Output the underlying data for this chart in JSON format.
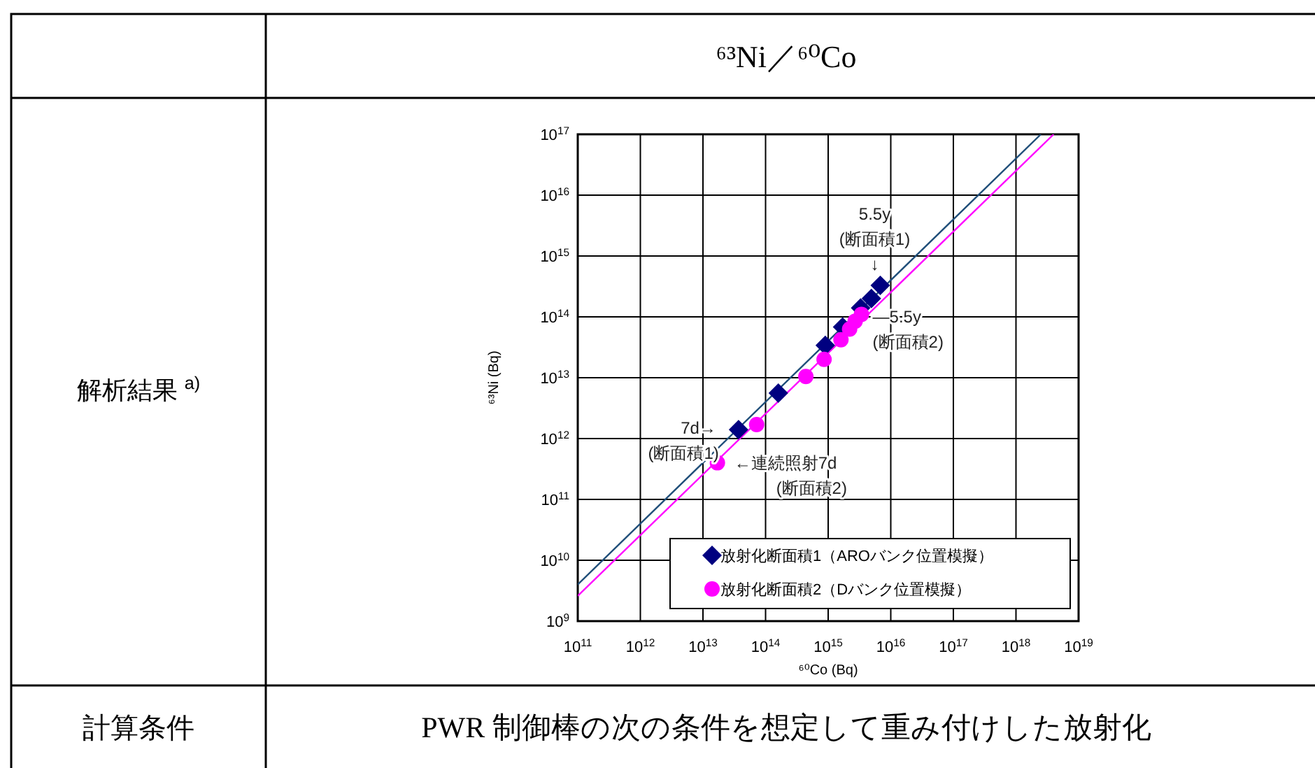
{
  "chart_data": {
    "type": "scatter",
    "title": "⁶³Ni／⁶⁰Co",
    "xlabel": "⁶⁰Co (Bq)",
    "ylabel": "⁶³Ni (Bq)",
    "log": "xy",
    "grid": true,
    "legend": "bottom right",
    "xlim": [
      100000000000.0,
      1e+19
    ],
    "ylim": [
      1000000000.0,
      1e+17
    ],
    "xticks": [
      {
        "value": 100000000000.0,
        "label": "10$^{11}$"
      },
      {
        "value": 1000000000000.0,
        "label": "10$^{12}$"
      },
      {
        "value": 10000000000000.0,
        "label": "10$^{13}$"
      },
      {
        "value": 100000000000000.0,
        "label": "10$^{14}$"
      },
      {
        "value": 1000000000000000.0,
        "label": "10$^{15}$"
      },
      {
        "value": 1e+16,
        "label": "10$^{16}$"
      },
      {
        "value": 1e+17,
        "label": "10$^{17}$"
      },
      {
        "value": 1e+18,
        "label": "10$^{18}$"
      },
      {
        "value": 1e+19,
        "label": "10$^{19}$"
      }
    ],
    "yticks": [
      {
        "value": 1000000000.0,
        "label": "10$^{9}$"
      },
      {
        "value": 10000000000.0,
        "label": "10$^{10}$"
      },
      {
        "value": 100000000000.0,
        "label": "10$^{11}$"
      },
      {
        "value": 1000000000000.0,
        "label": "10$^{12}$"
      },
      {
        "value": 10000000000000.0,
        "label": "10$^{13}$"
      },
      {
        "value": 100000000000000.0,
        "label": "10$^{14}$"
      },
      {
        "value": 1000000000000000.0,
        "label": "10$^{15}$"
      },
      {
        "value": 1e+16,
        "label": "10$^{16}$"
      },
      {
        "value": 1e+17,
        "label": "10$^{17}$"
      }
    ],
    "series": [
      {
        "type": "line",
        "color": "#1f4e79",
        "x": [
          100000000000.0,
          2.5e+18
        ],
        "values": [
          4000000000.0,
          1e+17
        ]
      },
      {
        "type": "line",
        "color": "#ff00ff",
        "x": [
          100000000000.0,
          4e+18
        ],
        "values": [
          2600000000.0,
          1e+17
        ]
      },
      {
        "name": "放射化断面積1（AROバンク位置模擬）",
        "color": "#000080",
        "marker": "diamond",
        "x": [
          37000000000000.0,
          160000000000000.0,
          900000000000000.0,
          1700000000000000.0,
          3300000000000000.0,
          4900000000000000.0,
          6800000000000000.0
        ],
        "values": [
          1400000000000.0,
          5600000000000.0,
          34000000000000.0,
          68000000000000.0,
          140000000000000.0,
          200000000000000.0,
          330000000000000.0
        ]
      },
      {
        "name": "放射化断面積2（Dバンク位置模擬）",
        "color": "#ff00ff",
        "marker": "circle",
        "x": [
          17000000000000.0,
          72000000000000.0,
          440000000000000.0,
          860000000000000.0,
          1600000000000000.0,
          2200000000000000.0,
          2700000000000000.0,
          3400000000000000.0
        ],
        "values": [
          400000000000.0,
          1700000000000.0,
          10500000000000.0,
          20000000000000.0,
          42000000000000.0,
          63000000000000.0,
          85000000000000.0,
          110000000000000.0
        ]
      }
    ],
    "annotations": [
      {
        "text": "5.5y\n(断面積1)\n↓",
        "x": 6800000000000000.0,
        "y": 330000000000000.0
      },
      {
        "text": "―5.5y\n(断面積2)",
        "x": 3400000000000000.0,
        "y": 110000000000000.0
      },
      {
        "text": "7d→\n(断面積1)",
        "x": 37000000000000.0,
        "y": 1400000000000.0
      },
      {
        "text": "←連続照射7d\n(断面積2)",
        "x": 17000000000000.0,
        "y": 400000000000.0
      },
      "解析結果 $^{a)}$",
      "計算条件",
      "PWR 制御棒の次の条件を想定して重み付けした放射化"
    ]
  }
}
